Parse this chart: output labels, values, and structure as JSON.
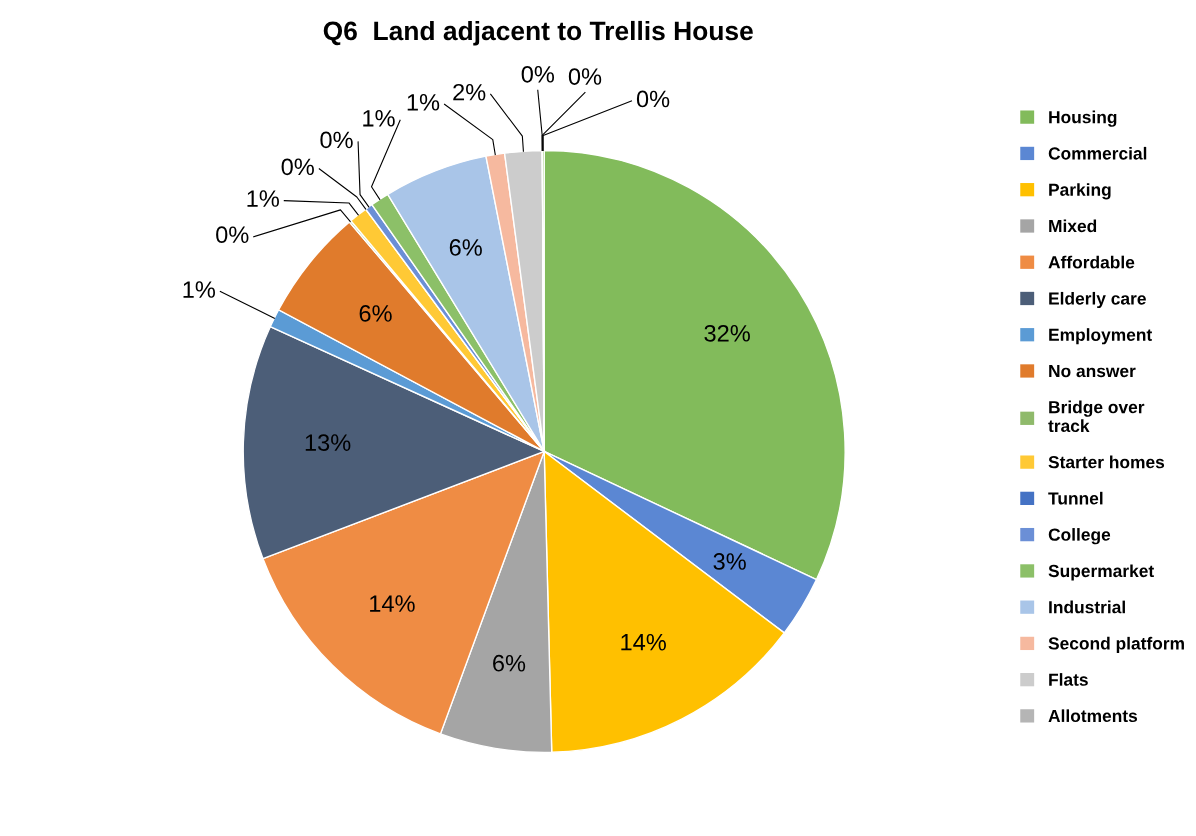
{
  "chart_data": {
    "type": "pie",
    "title": "Q6  Land adjacent to Trellis House",
    "categories": [
      "Housing",
      "Commercial",
      "Parking",
      "Mixed",
      "Affordable",
      "Elderly care",
      "Employment",
      "No answer",
      "Bridge over\ntrack",
      "Starter homes",
      "Tunnel",
      "College",
      "Supermarket",
      "Industrial",
      "Second platform",
      "Flats",
      "Allotments",
      null,
      null
    ],
    "values": [
      32,
      3.3,
      14.3,
      6,
      13.6,
      12.6,
      1,
      6,
      0.1,
      1,
      0,
      0.4,
      1,
      5.6,
      1,
      2,
      0,
      0,
      0.1
    ],
    "colors": [
      "#82bb5b",
      "#5b87d3",
      "#ffc000",
      "#a5a5a5",
      "#ef8c44",
      "#4c5e78",
      "#5b9bd5",
      "#e07b2c",
      "#8fba6b",
      "#ffc935",
      "#4472c4",
      "#6b8fd6",
      "#8cc068",
      "#a9c5e8",
      "#f6b99f",
      "#cccccc",
      "#b5b5b5",
      "#999999",
      "#9bc87a"
    ],
    "value_labels": [
      "32%",
      "3%",
      "14%",
      "6%",
      "14%",
      "13%",
      "1%",
      "6%",
      "0%",
      "1%",
      "0%",
      "0%",
      "1%",
      "6%",
      "1%",
      "2%",
      "0%",
      "0%",
      "0%"
    ],
    "legend": "right"
  }
}
